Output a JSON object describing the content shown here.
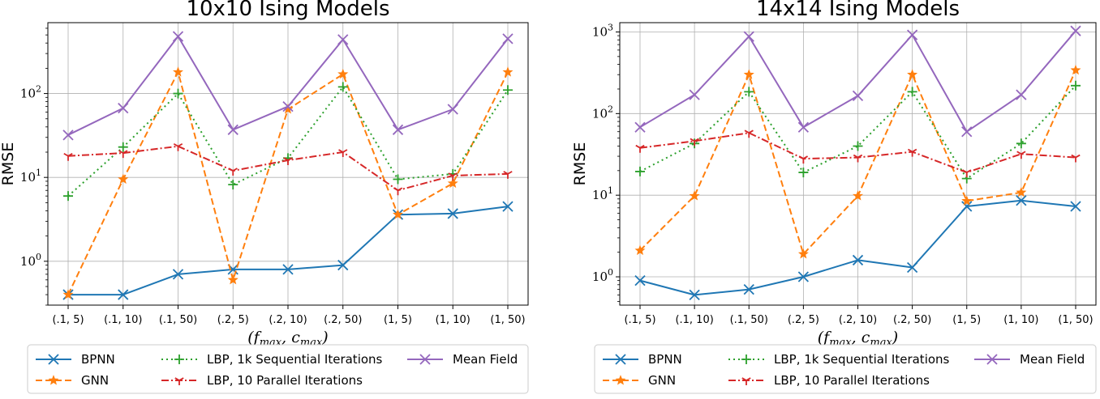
{
  "chart_data": [
    {
      "type": "line",
      "title": "10x10 Ising Models",
      "xlabel": "(f_max, c_max)",
      "ylabel": "RMSE",
      "yscale": "log",
      "ylim": [
        0.3,
        700
      ],
      "yticks": [
        "10^0",
        "10^1",
        "10^2"
      ],
      "categories": [
        "(.1, 5)",
        "(.1, 10)",
        "(.1, 50)",
        "(.2, 5)",
        "(.2, 10)",
        "(.2, 50)",
        "(1, 5)",
        "(1, 10)",
        "(1, 50)"
      ],
      "series": [
        {
          "name": "BPNN",
          "color": "#1f77b4",
          "dash": "solid",
          "marker": "x",
          "values": [
            0.4,
            0.4,
            0.7,
            0.8,
            0.8,
            0.9,
            3.6,
            3.7,
            4.5
          ]
        },
        {
          "name": "GNN",
          "color": "#ff7f0e",
          "dash": "dashed",
          "marker": "star",
          "values": [
            0.4,
            9.5,
            180,
            0.6,
            65,
            170,
            3.6,
            8.5,
            180
          ]
        },
        {
          "name": "LBP, 1k Sequential Iterations",
          "color": "#2ca02c",
          "dash": "dotted",
          "marker": "plus",
          "values": [
            6,
            23,
            100,
            8.2,
            17,
            120,
            9.5,
            11,
            110
          ]
        },
        {
          "name": "LBP, 10 Parallel Iterations",
          "color": "#d62728",
          "dash": "dashdot",
          "marker": "tri",
          "values": [
            18,
            19.5,
            23.5,
            12,
            16,
            20,
            7,
            10.5,
            11
          ]
        },
        {
          "name": "Mean Field",
          "color": "#9467bd",
          "dash": "solid",
          "marker": "x",
          "values": [
            32,
            67,
            480,
            37,
            70,
            440,
            37,
            65,
            450
          ]
        }
      ],
      "legend": {
        "placement": "below"
      }
    },
    {
      "type": "line",
      "title": "14x14 Ising Models",
      "xlabel": "(f_max, c_max)",
      "ylabel": "RMSE",
      "yscale": "log",
      "ylim": [
        0.45,
        1300
      ],
      "yticks": [
        "10^0",
        "10^1",
        "10^2",
        "10^3"
      ],
      "categories": [
        "(.1, 5)",
        "(.1, 10)",
        "(.1, 50)",
        "(.2, 5)",
        "(.2, 10)",
        "(.2, 50)",
        "(1, 5)",
        "(1, 10)",
        "(1, 50)"
      ],
      "series": [
        {
          "name": "BPNN",
          "color": "#1f77b4",
          "dash": "solid",
          "marker": "x",
          "values": [
            0.9,
            0.6,
            0.7,
            1.0,
            1.6,
            1.3,
            7.3,
            8.6,
            7.3
          ]
        },
        {
          "name": "GNN",
          "color": "#ff7f0e",
          "dash": "dashed",
          "marker": "star",
          "values": [
            2.1,
            9.8,
            300,
            1.9,
            9.8,
            300,
            8.5,
            10.8,
            340
          ]
        },
        {
          "name": "LBP, 1k Sequential Iterations",
          "color": "#2ca02c",
          "dash": "dotted",
          "marker": "plus",
          "values": [
            19.5,
            43,
            185,
            19,
            40,
            185,
            16,
            43,
            220
          ]
        },
        {
          "name": "LBP, 10 Parallel Iterations",
          "color": "#d62728",
          "dash": "dashdot",
          "marker": "tri",
          "values": [
            38,
            46,
            58,
            28,
            29,
            34,
            19,
            32,
            29
          ]
        },
        {
          "name": "Mean Field",
          "color": "#9467bd",
          "dash": "solid",
          "marker": "x",
          "values": [
            68,
            170,
            880,
            68,
            165,
            920,
            60,
            170,
            1030
          ]
        }
      ],
      "legend": {
        "placement": "below"
      }
    }
  ]
}
